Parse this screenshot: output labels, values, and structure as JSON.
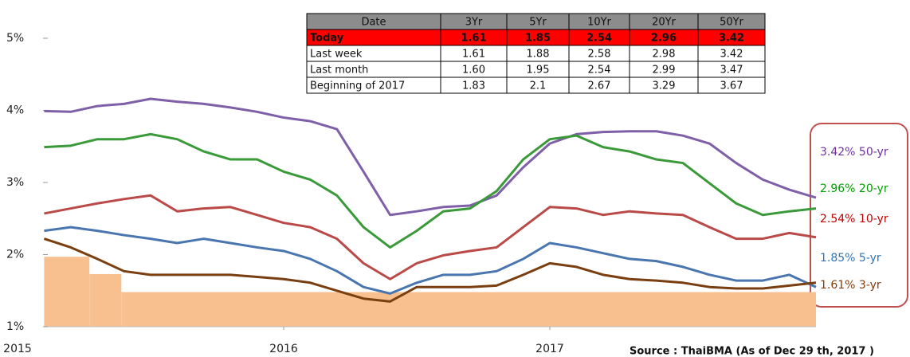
{
  "chart_data": {
    "type": "line",
    "xlim": [
      2015,
      2018
    ],
    "xticks": [
      2015,
      2016,
      2017
    ],
    "ylim": [
      1,
      5.5
    ],
    "yticks": [
      {
        "value": 1,
        "label": "1%"
      },
      {
        "value": 2,
        "label": "2%"
      },
      {
        "value": 3,
        "label": "3%"
      },
      {
        "value": 4,
        "label": "4%"
      },
      {
        "value": 5,
        "label": "5%"
      }
    ],
    "x": [
      2015.1,
      2015.2,
      2015.3,
      2015.4,
      2015.5,
      2015.6,
      2015.7,
      2015.8,
      2015.9,
      2016.0,
      2016.1,
      2016.2,
      2016.3,
      2016.4,
      2016.5,
      2016.6,
      2016.7,
      2016.8,
      2016.9,
      2017.0,
      2017.1,
      2017.2,
      2017.3,
      2017.4,
      2017.5,
      2017.6,
      2017.7,
      2017.8,
      2017.9,
      2018.0
    ],
    "series": [
      {
        "color": "#7f5fa8",
        "label": "3.42% 50-yr",
        "values": [
          3.99,
          3.98,
          4.06,
          4.09,
          4.16,
          4.12,
          4.09,
          4.04,
          3.98,
          3.9,
          3.85,
          3.74,
          3.15,
          2.55,
          2.6,
          2.66,
          2.68,
          2.82,
          3.21,
          3.54,
          3.67,
          3.7,
          3.71,
          3.71,
          3.65,
          3.54,
          3.27,
          3.04,
          2.9,
          2.79
        ]
      },
      {
        "color": "#3a9a3a",
        "label": "2.96% 20-yr",
        "values": [
          3.49,
          3.51,
          3.6,
          3.6,
          3.67,
          3.6,
          3.43,
          3.32,
          3.32,
          3.15,
          3.04,
          2.82,
          2.38,
          2.1,
          2.33,
          2.6,
          2.64,
          2.88,
          3.32,
          3.6,
          3.65,
          3.49,
          3.43,
          3.32,
          3.27,
          2.99,
          2.71,
          2.55,
          2.6,
          2.64
        ]
      },
      {
        "color": "#b94a48",
        "label": "2.54% 10-yr",
        "values": [
          2.57,
          2.64,
          2.71,
          2.77,
          2.82,
          2.6,
          2.64,
          2.66,
          2.55,
          2.44,
          2.38,
          2.22,
          1.88,
          1.66,
          1.88,
          1.99,
          2.05,
          2.1,
          2.38,
          2.66,
          2.64,
          2.55,
          2.6,
          2.57,
          2.55,
          2.38,
          2.22,
          2.22,
          2.3,
          2.24
        ]
      },
      {
        "color": "#4a76b0",
        "label": "1.85% 5-yr",
        "values": [
          2.33,
          2.38,
          2.33,
          2.27,
          2.22,
          2.16,
          2.22,
          2.16,
          2.1,
          2.05,
          1.94,
          1.77,
          1.55,
          1.46,
          1.61,
          1.72,
          1.72,
          1.77,
          1.94,
          2.16,
          2.1,
          2.02,
          1.94,
          1.91,
          1.83,
          1.72,
          1.64,
          1.64,
          1.72,
          1.55
        ]
      },
      {
        "color": "#7a3f10",
        "label": "1.61% 3-yr",
        "values": [
          2.22,
          2.1,
          1.94,
          1.77,
          1.72,
          1.72,
          1.72,
          1.72,
          1.69,
          1.66,
          1.61,
          1.5,
          1.39,
          1.35,
          1.55,
          1.55,
          1.55,
          1.57,
          1.72,
          1.88,
          1.83,
          1.72,
          1.66,
          1.64,
          1.61,
          1.55,
          1.53,
          1.53,
          1.57,
          1.61
        ]
      }
    ],
    "label_colors": [
      "#7030a0",
      "#00a000",
      "#c00000",
      "#2e75b6",
      "#833c0b"
    ],
    "policy_area": {
      "color": "#f9c08f",
      "edges": [
        2015.1,
        2015.27,
        2015.39,
        2018.0
      ],
      "values": [
        1.97,
        1.73,
        1.48
      ]
    },
    "source": "Source : ThaiBMA (As of Dec 29 th, 2017 )"
  },
  "table": {
    "header": [
      "Date",
      "3Yr",
      "5Yr",
      "10Yr",
      "20Yr",
      "50Yr"
    ],
    "rows": [
      [
        "Today",
        "1.61",
        "1.85",
        "2.54",
        "2.96",
        "3.42"
      ],
      [
        "Last week",
        "1.61",
        "1.88",
        "2.58",
        "2.98",
        "3.42"
      ],
      [
        "Last month",
        "1.60",
        "1.95",
        "2.54",
        "2.99",
        "3.47"
      ],
      [
        "Beginning of 2017",
        "1.83",
        "2.1",
        "2.67",
        "3.29",
        "3.67"
      ]
    ]
  }
}
